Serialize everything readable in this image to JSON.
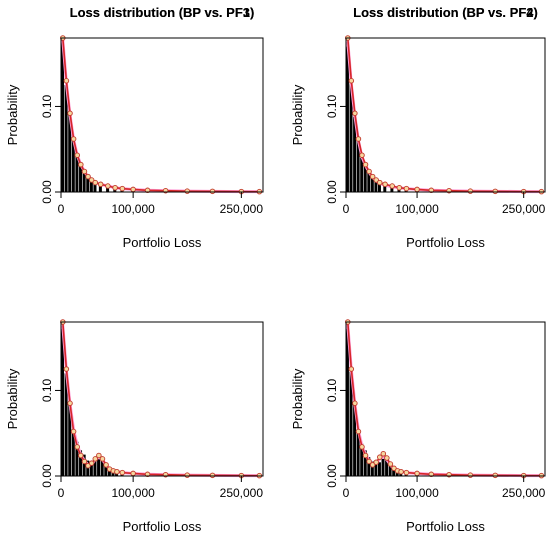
{
  "colors": {
    "bar": "#000000",
    "bp_line": "#d62728",
    "pf_line": "#ff9ad5",
    "point_face": "#f7d7a0",
    "point_edge": "#c0392b"
  },
  "chart_data": [
    {
      "type": "bar",
      "title": "Loss distribution (BP vs. PF1)",
      "xlabel": "Portfolio Loss",
      "ylabel": "Probability",
      "xlim": [
        0,
        280000
      ],
      "ylim": [
        0,
        0.18
      ],
      "x_ticks": [
        0,
        100000,
        250000
      ],
      "x_tick_labels": [
        "0",
        "100,000",
        "250,000"
      ],
      "y_ticks": [
        0,
        0.1
      ],
      "y_tick_labels": [
        "0.00",
        "0.10"
      ],
      "bar_width": 5000,
      "x": [
        2500,
        7500,
        12500,
        17500,
        22500,
        27500,
        32500,
        37500,
        42500,
        47500,
        55000,
        65000,
        75000,
        85000,
        100000,
        120000,
        145000,
        175000,
        210000,
        250000,
        275000
      ],
      "values": [
        0.175,
        0.125,
        0.09,
        0.06,
        0.042,
        0.032,
        0.024,
        0.018,
        0.014,
        0.011,
        0.009,
        0.007,
        0.005,
        0.004,
        0.003,
        0.002,
        0.0015,
        0.001,
        0.0008,
        0.0005,
        0.0004
      ],
      "bp_points": [
        0.18,
        0.13,
        0.092,
        0.062,
        0.043,
        0.032,
        0.024,
        0.018,
        0.014,
        0.011,
        0.009,
        0.007,
        0.005,
        0.004,
        0.003,
        0.002,
        0.0015,
        0.001,
        0.0008,
        0.0005,
        0.0004
      ],
      "pf_points": [
        0.178,
        0.127,
        0.09,
        0.061,
        0.043,
        0.032,
        0.024,
        0.018,
        0.014,
        0.011,
        0.009,
        0.007,
        0.005,
        0.004,
        0.003,
        0.002,
        0.0015,
        0.001,
        0.0008,
        0.0005,
        0.0004
      ]
    },
    {
      "type": "bar",
      "title": "Loss distribution (BP vs. PF2)",
      "xlabel": "Portfolio Loss",
      "ylabel": "Probability",
      "xlim": [
        0,
        280000
      ],
      "ylim": [
        0,
        0.18
      ],
      "x_ticks": [
        0,
        100000,
        250000
      ],
      "x_tick_labels": [
        "0",
        "100,000",
        "250,000"
      ],
      "y_ticks": [
        0,
        0.1
      ],
      "y_tick_labels": [
        "0.00",
        "0.10"
      ],
      "bar_width": 5000,
      "x": [
        2500,
        7500,
        12500,
        17500,
        22500,
        27500,
        32500,
        37500,
        42500,
        47500,
        55000,
        65000,
        75000,
        85000,
        100000,
        120000,
        145000,
        175000,
        210000,
        250000,
        275000
      ],
      "values": [
        0.17,
        0.128,
        0.088,
        0.06,
        0.04,
        0.03,
        0.023,
        0.017,
        0.013,
        0.01,
        0.008,
        0.006,
        0.005,
        0.004,
        0.003,
        0.002,
        0.0015,
        0.001,
        0.0008,
        0.0005,
        0.0004
      ],
      "bp_points": [
        0.18,
        0.13,
        0.092,
        0.062,
        0.043,
        0.032,
        0.024,
        0.018,
        0.014,
        0.011,
        0.009,
        0.007,
        0.005,
        0.004,
        0.003,
        0.002,
        0.0015,
        0.001,
        0.0008,
        0.0005,
        0.0004
      ],
      "pf_points": [
        0.176,
        0.126,
        0.089,
        0.06,
        0.041,
        0.031,
        0.023,
        0.017,
        0.013,
        0.01,
        0.008,
        0.006,
        0.005,
        0.004,
        0.003,
        0.002,
        0.0015,
        0.001,
        0.0008,
        0.0005,
        0.0004
      ]
    },
    {
      "type": "bar",
      "title": "Loss distribution (BP vs. PF3)",
      "xlabel": "Portfolio Loss",
      "ylabel": "Probability",
      "xlim": [
        0,
        280000
      ],
      "ylim": [
        0,
        0.18
      ],
      "x_ticks": [
        0,
        100000,
        250000
      ],
      "x_tick_labels": [
        "0",
        "100,000",
        "250,000"
      ],
      "y_ticks": [
        0,
        0.1
      ],
      "y_tick_labels": [
        "0.00",
        "0.10"
      ],
      "bar_width": 5000,
      "x": [
        2500,
        7500,
        12500,
        17500,
        22500,
        27500,
        32500,
        37500,
        42500,
        47500,
        52500,
        57500,
        62500,
        67500,
        72500,
        77500,
        85000,
        100000,
        120000,
        145000,
        175000,
        210000,
        250000,
        275000
      ],
      "values": [
        0.172,
        0.12,
        0.085,
        0.055,
        0.04,
        0.03,
        0.025,
        0.018,
        0.014,
        0.018,
        0.022,
        0.02,
        0.014,
        0.009,
        0.007,
        0.005,
        0.004,
        0.003,
        0.002,
        0.0015,
        0.001,
        0.0008,
        0.0005,
        0.0004
      ],
      "bp_points": [
        0.18,
        0.125,
        0.085,
        0.052,
        0.034,
        0.024,
        0.017,
        0.012,
        0.015,
        0.02,
        0.024,
        0.02,
        0.013,
        0.008,
        0.006,
        0.005,
        0.004,
        0.003,
        0.002,
        0.0015,
        0.001,
        0.0008,
        0.0005,
        0.0004
      ],
      "pf_points": [
        0.176,
        0.123,
        0.084,
        0.054,
        0.036,
        0.025,
        0.018,
        0.013,
        0.014,
        0.019,
        0.022,
        0.019,
        0.013,
        0.008,
        0.006,
        0.005,
        0.004,
        0.003,
        0.002,
        0.0015,
        0.001,
        0.0008,
        0.0005,
        0.0004
      ]
    },
    {
      "type": "bar",
      "title": "Loss distribution (BP vs. PF4)",
      "xlabel": "Portfolio Loss",
      "ylabel": "Probability",
      "xlim": [
        0,
        280000
      ],
      "ylim": [
        0,
        0.18
      ],
      "x_ticks": [
        0,
        100000,
        250000
      ],
      "x_tick_labels": [
        "0",
        "100,000",
        "250,000"
      ],
      "y_ticks": [
        0,
        0.1
      ],
      "y_tick_labels": [
        "0.00",
        "0.10"
      ],
      "bar_width": 5000,
      "x": [
        2500,
        7500,
        12500,
        17500,
        22500,
        27500,
        32500,
        37500,
        42500,
        47500,
        52500,
        57500,
        62500,
        67500,
        72500,
        77500,
        85000,
        100000,
        120000,
        145000,
        175000,
        210000,
        250000,
        275000
      ],
      "values": [
        0.172,
        0.122,
        0.084,
        0.055,
        0.038,
        0.03,
        0.022,
        0.017,
        0.013,
        0.016,
        0.02,
        0.018,
        0.013,
        0.009,
        0.007,
        0.005,
        0.004,
        0.003,
        0.002,
        0.0015,
        0.001,
        0.0008,
        0.0005,
        0.0004
      ],
      "bp_points": [
        0.18,
        0.125,
        0.085,
        0.052,
        0.034,
        0.024,
        0.017,
        0.013,
        0.016,
        0.022,
        0.026,
        0.021,
        0.014,
        0.009,
        0.006,
        0.005,
        0.004,
        0.003,
        0.002,
        0.0015,
        0.001,
        0.0008,
        0.0005,
        0.0004
      ],
      "pf_points": [
        0.177,
        0.124,
        0.084,
        0.053,
        0.035,
        0.025,
        0.018,
        0.014,
        0.015,
        0.02,
        0.023,
        0.019,
        0.013,
        0.008,
        0.006,
        0.005,
        0.004,
        0.003,
        0.002,
        0.0015,
        0.001,
        0.0008,
        0.0005,
        0.0004
      ]
    }
  ]
}
